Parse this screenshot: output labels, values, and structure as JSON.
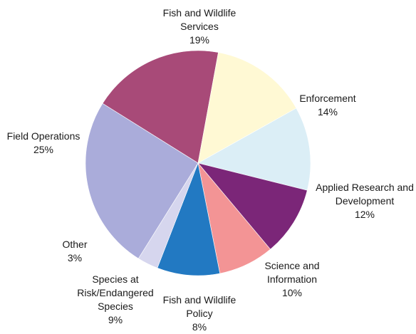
{
  "chart_data": {
    "type": "pie",
    "title": "",
    "slices": [
      {
        "label_lines": [
          "Fish and Wildlife",
          "Services"
        ],
        "pct_label": "19%",
        "value": 19,
        "color": "#a84a78"
      },
      {
        "label_lines": [
          "Enforcement"
        ],
        "pct_label": "14%",
        "value": 14,
        "color": "#fff9d4"
      },
      {
        "label_lines": [
          "Applied Research and",
          "Development"
        ],
        "pct_label": "12%",
        "value": 12,
        "color": "#dbeef6"
      },
      {
        "label_lines": [
          "Science and",
          "Information"
        ],
        "pct_label": "10%",
        "value": 10,
        "color": "#7b2678"
      },
      {
        "label_lines": [
          "Fish and Wildlife",
          "Policy"
        ],
        "pct_label": "8%",
        "value": 8,
        "color": "#f39495"
      },
      {
        "label_lines": [
          "Species at",
          "Risk/Endangered",
          "Species"
        ],
        "pct_label": "9%",
        "value": 9,
        "color": "#2279c2"
      },
      {
        "label_lines": [
          "Other"
        ],
        "pct_label": "3%",
        "value": 3,
        "color": "#d6d6ee"
      },
      {
        "label_lines": [
          "Field Operations"
        ],
        "pct_label": "25%",
        "value": 25,
        "color": "#aaacda"
      }
    ]
  }
}
